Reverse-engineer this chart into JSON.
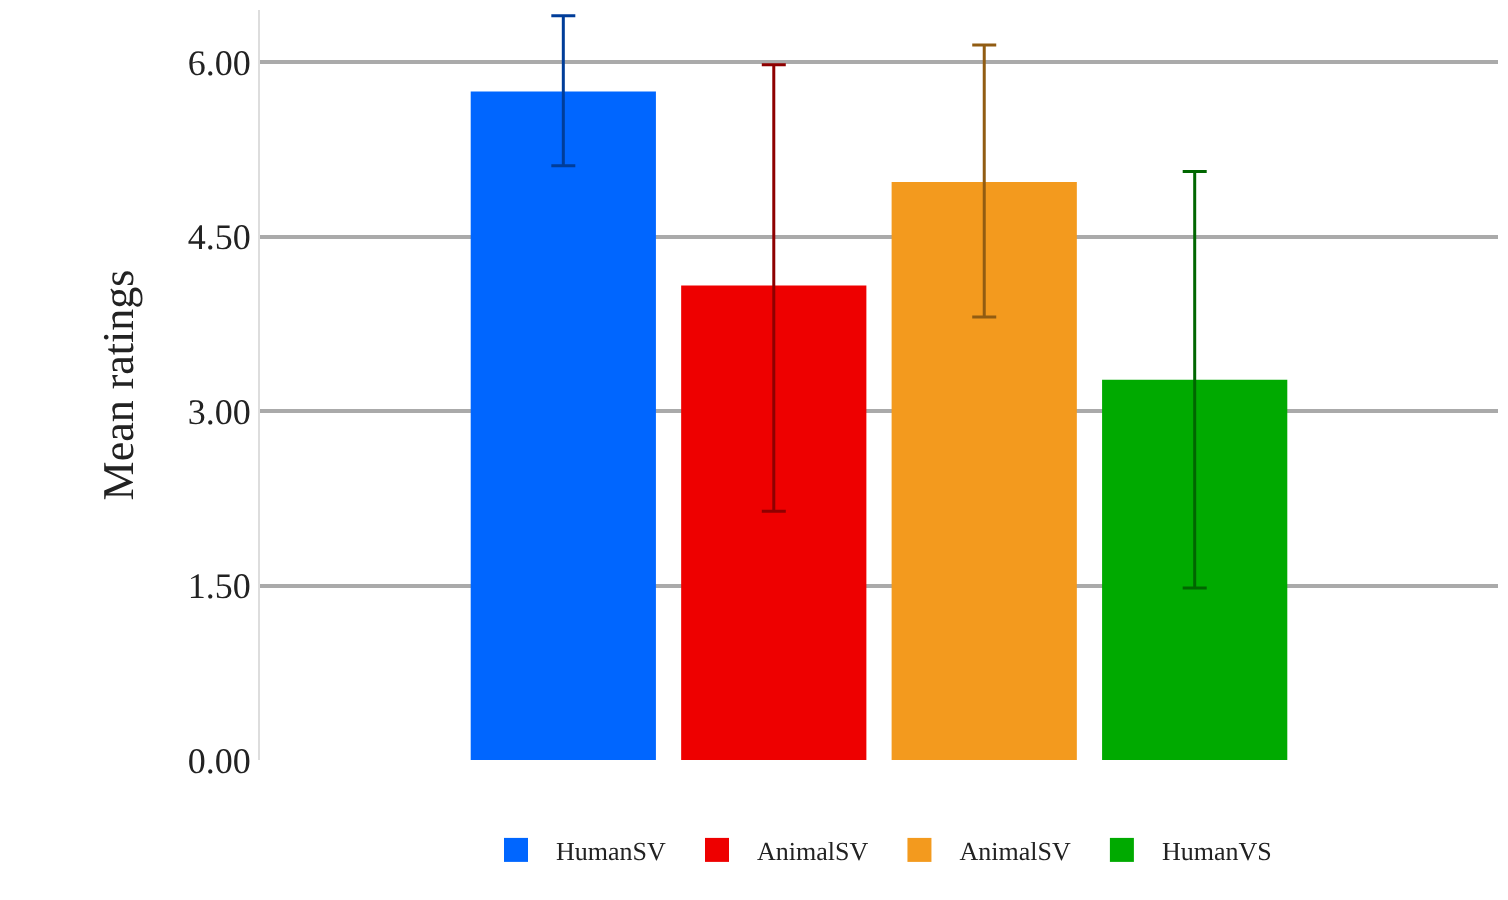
{
  "chart_data": {
    "type": "bar",
    "ylabel": "Mean ratings",
    "categories": [
      null
    ],
    "series": [
      {
        "name": "HumanSV",
        "color": "#0066ff",
        "values": [
          5.75
        ],
        "errors": [
          [
            5.11,
            6.4
          ]
        ]
      },
      {
        "name": "AnimalSV",
        "color": "#ee0000",
        "values": [
          4.08
        ],
        "errors": [
          [
            2.14,
            5.98
          ]
        ]
      },
      {
        "name": "AnimalSV",
        "color": "#f39a1e",
        "values": [
          4.97
        ],
        "errors": [
          [
            3.81,
            6.15
          ]
        ]
      },
      {
        "name": "HumanVS",
        "color": "#00aa00",
        "values": [
          3.27
        ],
        "errors": [
          [
            1.48,
            5.06
          ]
        ]
      }
    ],
    "ylim": [
      0,
      6.45
    ],
    "yticks": [
      {
        "value": 0,
        "label": "0.00"
      },
      {
        "value": 1.5,
        "label": "1.50"
      },
      {
        "value": 3,
        "label": "3.00"
      },
      {
        "value": 4.5,
        "label": "4.50"
      },
      {
        "value": 6,
        "label": "6.00"
      }
    ],
    "grid": "y",
    "legend": "bottom"
  }
}
